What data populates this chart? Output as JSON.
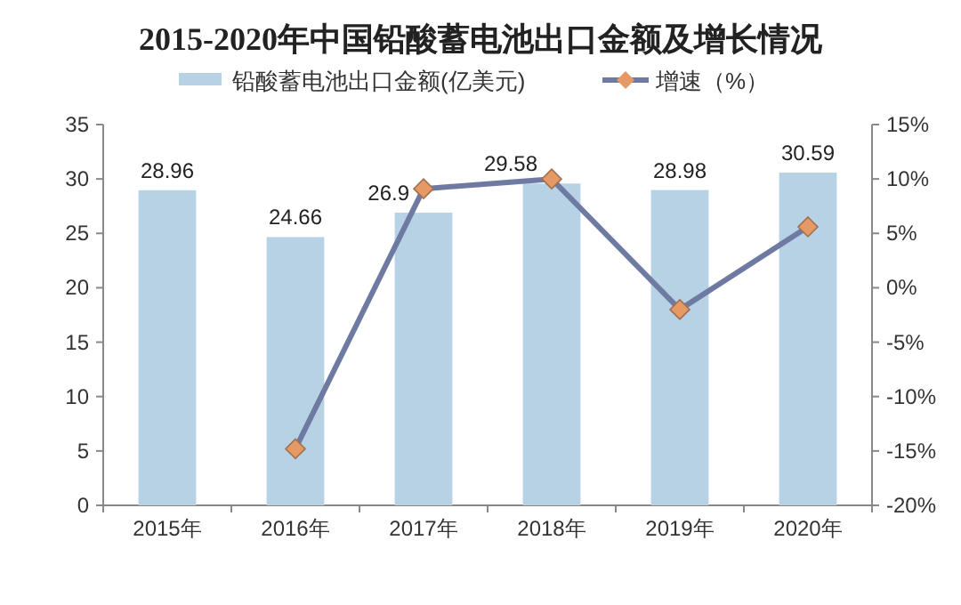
{
  "chart_data": {
    "type": "bar",
    "title": "2015-2020年中国铅酸蓄电池出口金额及增长情况",
    "categories": [
      "2015年",
      "2016年",
      "2017年",
      "2018年",
      "2019年",
      "2020年"
    ],
    "series": [
      {
        "name": "铅酸蓄电池出口金额(亿美元)",
        "color": "#b7d1e5",
        "values": [
          28.96,
          24.66,
          26.9,
          29.58,
          28.98,
          30.59
        ],
        "value_labels": [
          "28.96",
          "24.66",
          "26.9",
          "29.58",
          "28.98",
          "30.59"
        ]
      },
      {
        "name": "增速（%）",
        "type": "line",
        "axis": "y2",
        "color": "#6e7aa2",
        "marker": "diamond",
        "values": [
          null,
          -14.8,
          9.1,
          10.0,
          -2.0,
          5.6
        ]
      }
    ],
    "ylim": [
      0,
      35
    ],
    "yticks": [
      0,
      5,
      10,
      15,
      20,
      25,
      30,
      35
    ],
    "y2lim": [
      -20,
      15
    ],
    "y2ticks": [
      {
        "value": -20,
        "label": "-20%"
      },
      {
        "value": -15,
        "label": "-15%"
      },
      {
        "value": -10,
        "label": "-10%"
      },
      {
        "value": -5,
        "label": "-5%"
      },
      {
        "value": 0,
        "label": "0%"
      },
      {
        "value": 5,
        "label": "5%"
      },
      {
        "value": 10,
        "label": "10%"
      },
      {
        "value": 15,
        "label": "15%"
      }
    ],
    "grid": false,
    "legend": "top"
  }
}
